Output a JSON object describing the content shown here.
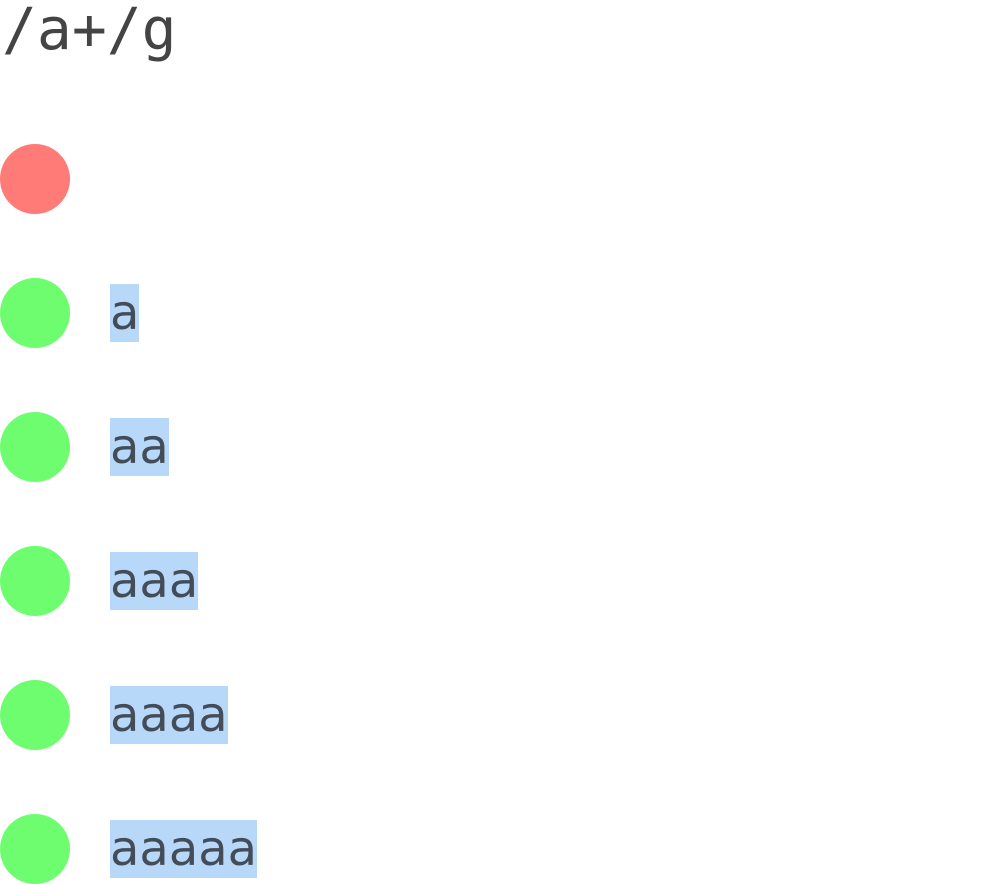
{
  "pattern": "/a+/g",
  "colors": {
    "no_match": "#ff7b78",
    "match": "#6ffd70",
    "highlight": "#b8d8fa",
    "text": "#444444"
  },
  "tests": [
    {
      "input": "",
      "matched": false
    },
    {
      "input": "a",
      "matched": true
    },
    {
      "input": "aa",
      "matched": true
    },
    {
      "input": "aaa",
      "matched": true
    },
    {
      "input": "aaaa",
      "matched": true
    },
    {
      "input": "aaaaa",
      "matched": true
    }
  ]
}
